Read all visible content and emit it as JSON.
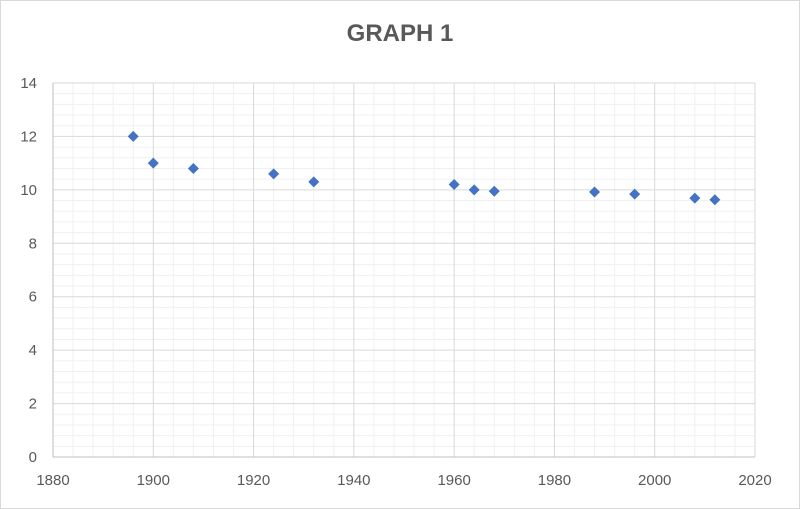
{
  "chart_data": {
    "type": "scatter",
    "title": "GRAPH 1",
    "xlabel": "",
    "ylabel": "",
    "xlim": [
      1880,
      2020
    ],
    "ylim": [
      0,
      14
    ],
    "x_major_ticks": [
      1880,
      1900,
      1920,
      1940,
      1960,
      1980,
      2000,
      2020
    ],
    "y_major_ticks": [
      0,
      2,
      4,
      6,
      8,
      10,
      12,
      14
    ],
    "grid": "major and minor",
    "legend": "none",
    "marker": "diamond",
    "marker_color": "#4472c4",
    "series": [
      {
        "points": [
          {
            "x": 1896,
            "y": 12.0
          },
          {
            "x": 1900,
            "y": 11.0
          },
          {
            "x": 1908,
            "y": 10.8
          },
          {
            "x": 1924,
            "y": 10.6
          },
          {
            "x": 1932,
            "y": 10.3
          },
          {
            "x": 1960,
            "y": 10.2
          },
          {
            "x": 1964,
            "y": 10.0
          },
          {
            "x": 1968,
            "y": 9.95
          },
          {
            "x": 1988,
            "y": 9.92
          },
          {
            "x": 1996,
            "y": 9.84
          },
          {
            "x": 2008,
            "y": 9.69
          },
          {
            "x": 2012,
            "y": 9.63
          }
        ]
      }
    ]
  }
}
